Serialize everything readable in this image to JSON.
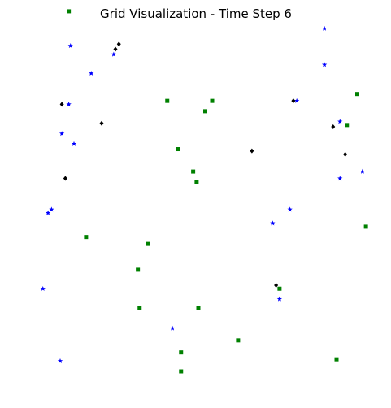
{
  "chart_data": {
    "type": "scatter",
    "title": "Grid Visualization - Time Step 6",
    "xlabel": "",
    "ylabel": "",
    "xlim": [
      0,
      20
    ],
    "ylim": [
      0,
      20
    ],
    "axes_visible": false,
    "grid": false,
    "legend": "none",
    "series": [
      {
        "marker": "star",
        "color": "#0000ff",
        "points": [
          [
            2.2,
            18.9
          ],
          [
            3.4,
            17.3
          ],
          [
            2.1,
            15.5
          ],
          [
            1.7,
            13.8
          ],
          [
            2.4,
            13.2
          ],
          [
            1.1,
            9.4
          ],
          [
            0.9,
            9.2
          ],
          [
            0.6,
            4.8
          ],
          [
            1.6,
            0.6
          ],
          [
            16.9,
            19.9
          ],
          [
            16.9,
            17.8
          ],
          [
            15.3,
            15.7
          ],
          [
            17.8,
            14.5
          ],
          [
            17.8,
            11.2
          ],
          [
            19.1,
            11.6
          ],
          [
            14.9,
            9.4
          ],
          [
            13.9,
            8.6
          ],
          [
            14.3,
            4.2
          ],
          [
            8.1,
            2.5
          ],
          [
            4.7,
            18.4
          ]
        ]
      },
      {
        "marker": "square",
        "color": "#008000",
        "points": [
          [
            2.1,
            20.9
          ],
          [
            7.8,
            15.7
          ],
          [
            10.4,
            15.7
          ],
          [
            10.0,
            15.1
          ],
          [
            18.8,
            16.1
          ],
          [
            18.2,
            14.3
          ],
          [
            8.4,
            12.9
          ],
          [
            9.3,
            11.6
          ],
          [
            9.5,
            11.0
          ],
          [
            19.3,
            8.4
          ],
          [
            3.1,
            7.8
          ],
          [
            6.7,
            7.4
          ],
          [
            6.1,
            5.9
          ],
          [
            14.3,
            4.8
          ],
          [
            6.2,
            3.7
          ],
          [
            9.6,
            3.7
          ],
          [
            11.9,
            1.8
          ],
          [
            8.6,
            1.1
          ],
          [
            8.6,
            0.0
          ],
          [
            17.6,
            0.7
          ]
        ]
      },
      {
        "marker": "diamond",
        "color": "#000000",
        "points": [
          [
            5.0,
            19.0
          ],
          [
            4.8,
            18.7
          ],
          [
            1.7,
            15.5
          ],
          [
            4.0,
            14.4
          ],
          [
            15.1,
            15.7
          ],
          [
            17.4,
            14.2
          ],
          [
            12.7,
            12.8
          ],
          [
            18.1,
            12.6
          ],
          [
            1.9,
            11.2
          ],
          [
            14.1,
            5.0
          ]
        ]
      }
    ]
  }
}
